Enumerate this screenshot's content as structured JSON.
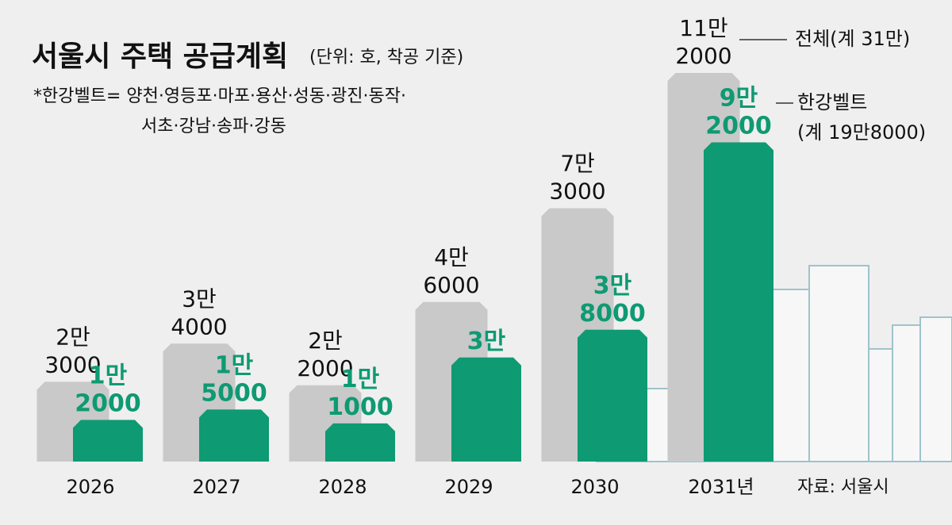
{
  "chart_data": {
    "type": "bar",
    "title": "서울시 주택 공급계획",
    "subtitle": "(단위: 호, 착공 기준)",
    "note": [
      "*한강벨트= 양천·영등포·마포·용산·성동·광진·동작·",
      "서초·강남·송파·강동"
    ],
    "source": "자료: 서울시",
    "categories": [
      "2026",
      "2027",
      "2028",
      "2029",
      "2030",
      "2031년"
    ],
    "series": [
      {
        "name": "전체(계 31만)",
        "color": "#c9c9c9",
        "values": [
          23000,
          34000,
          22000,
          46000,
          73000,
          112000
        ],
        "value_labels": [
          "2만 3000",
          "3만 4000",
          "2만 2000",
          "4만 6000",
          "7만 3000",
          "11만 2000"
        ]
      },
      {
        "name": "한강벨트 (계 19만8000)",
        "color": "#0e9a72",
        "values": [
          12000,
          15000,
          11000,
          30000,
          38000,
          92000
        ],
        "value_labels": [
          "1만 2000",
          "1만 5000",
          "1만 1000",
          "3만",
          "3만 8000",
          "9만 2000"
        ]
      }
    ]
  }
}
